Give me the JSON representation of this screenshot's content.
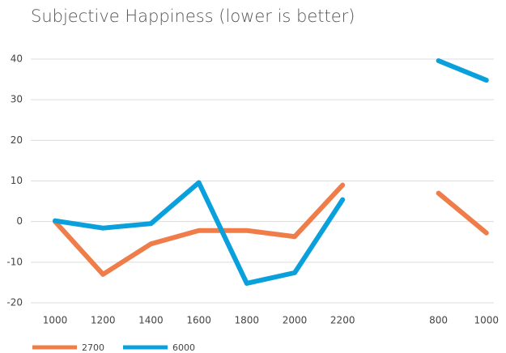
{
  "chart_data": {
    "type": "line",
    "title": "Subjective Happiness (lower is better)",
    "categories": [
      "1000",
      "1200",
      "1400",
      "1600",
      "1800",
      "2000",
      "2200",
      null,
      "800",
      "1000"
    ],
    "series": [
      {
        "name": "2700",
        "color": "#ef7d4a",
        "values": [
          0,
          -13,
          -5.5,
          -2.2,
          -2.2,
          -3.7,
          9,
          null,
          7,
          -2.8
        ]
      },
      {
        "name": "6000",
        "color": "#0aa0dc",
        "values": [
          0.2,
          -1.6,
          -0.5,
          9.6,
          -15.2,
          -12.6,
          5.4,
          null,
          39.6,
          34.8
        ]
      }
    ],
    "ylim": [
      -20,
      40
    ],
    "yticks": [
      -20,
      -10,
      0,
      10,
      20,
      30,
      40
    ],
    "grid": true,
    "legend": "bottom"
  }
}
